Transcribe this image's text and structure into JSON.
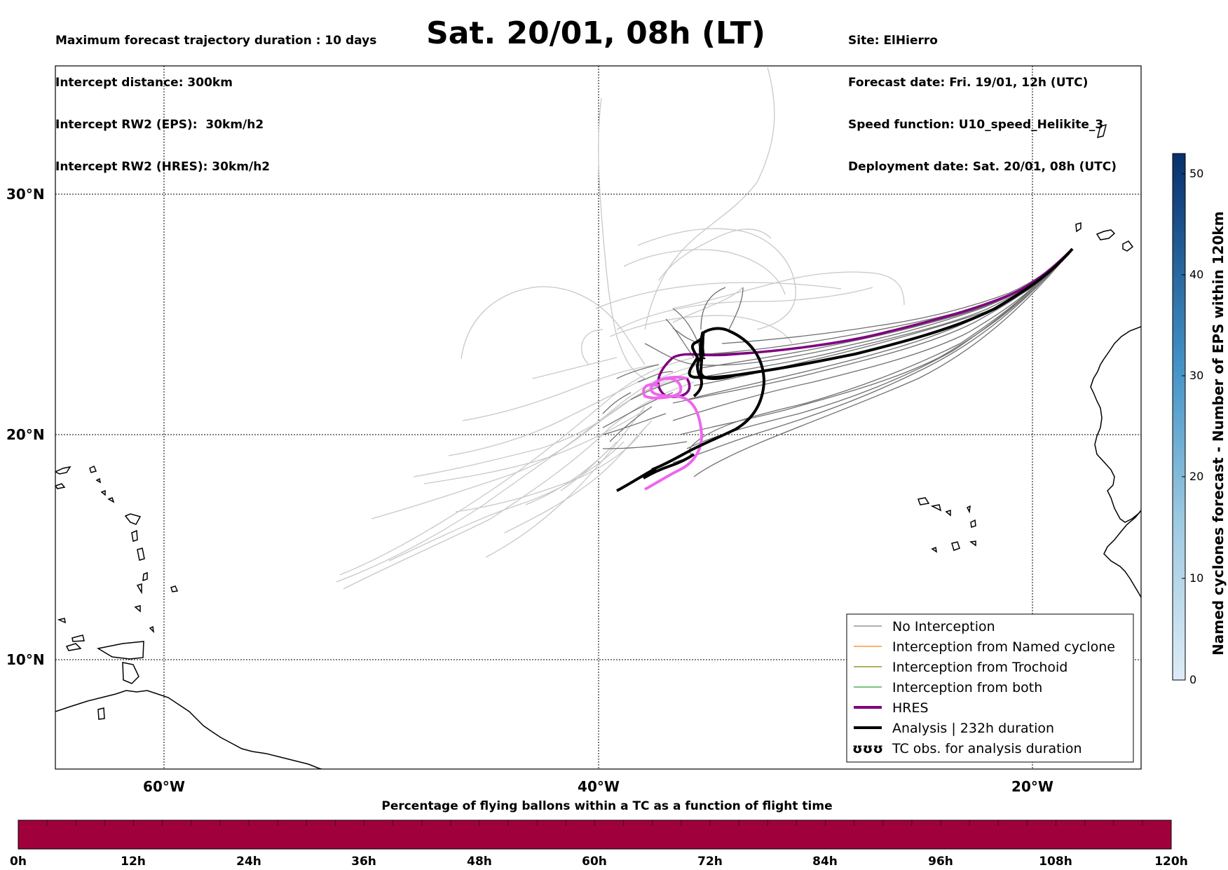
{
  "header_left": [
    "Maximum forecast trajectory duration : 10 days",
    "Intercept distance: 300km",
    "Intercept RW2 (EPS):  30km/h2",
    "Intercept RW2 (HRES): 30km/h2"
  ],
  "header_right": [
    "Site: ElHierro",
    "Forecast date: Fri. 19/01, 12h (UTC)",
    "Speed function: U10_speed_Helikite_3",
    "Deployment date: Sat. 20/01, 08h (UTC)"
  ],
  "title": "Sat. 20/01, 08h (LT)",
  "map": {
    "lat_labels": [
      "30°N",
      "20°N",
      "10°N"
    ],
    "lon_labels": [
      "60°W",
      "40°W",
      "20°W"
    ],
    "grid": "dotted"
  },
  "legend": {
    "placement": "bottom-right",
    "items": [
      {
        "label": "No Interception",
        "color": "#7f7f7f"
      },
      {
        "label": "Interception from Named cyclone",
        "color": "#ff7f0e"
      },
      {
        "label": "Interception from Trochoid",
        "color": "#808000"
      },
      {
        "label": "Interception from both",
        "color": "#2ca02c"
      },
      {
        "label": "HRES",
        "color": "#800080"
      },
      {
        "label": "Analysis | 232h duration",
        "color": "#000000"
      },
      {
        "label": "TC obs. for analysis duration",
        "symbol": "ʊʊʊ"
      }
    ]
  },
  "colorbar_right": {
    "label": "Named cyclones forecast - Number of EPS within 120km",
    "ticks": [
      "0",
      "10",
      "20",
      "30",
      "40",
      "50"
    ],
    "colors": [
      "#deebf7",
      "#08306b"
    ]
  },
  "colorbar_bottom": {
    "title": "Percentage of flying ballons within a TC as a function of flight time",
    "ticks": [
      "0h",
      "12h",
      "24h",
      "36h",
      "48h",
      "60h",
      "72h",
      "84h",
      "96h",
      "108h",
      "120h"
    ],
    "color": "#a0003c"
  }
}
